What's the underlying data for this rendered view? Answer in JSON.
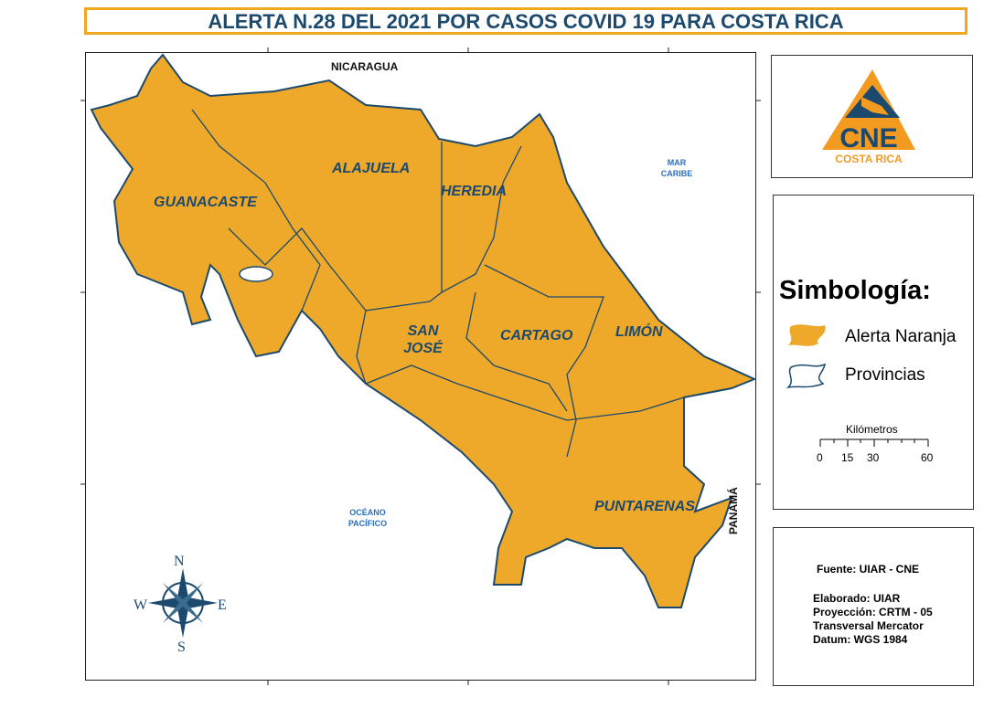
{
  "title": "ALERTA N.28 DEL 2021 POR CASOS COVID 19 PARA COSTA RICA",
  "map": {
    "countries": {
      "north": "NICARAGUA",
      "south": "PANAMÁ"
    },
    "seas": {
      "caribbean": "MAR CARIBE",
      "pacific": "OCÉANO PACÍFICO"
    },
    "provinces": [
      "GUANACASTE",
      "ALAJUELA",
      "HEREDIA",
      "SAN JOSÉ",
      "CARTAGO",
      "LIMÓN",
      "PUNTARENAS"
    ],
    "compass": {
      "n": "N",
      "s": "S",
      "e": "E",
      "w": "W"
    },
    "colors": {
      "alert_fill": "#eea92a",
      "border": "#1c4a6e"
    }
  },
  "logo": {
    "text": "CNE",
    "subtitle": "COSTA RICA"
  },
  "legend": {
    "title": "Simbología:",
    "items": [
      {
        "label": "Alerta Naranja",
        "icon": "orange-fill-swatch"
      },
      {
        "label": "Provincias",
        "icon": "province-outline-swatch"
      }
    ],
    "scale": {
      "unit": "Kilómetros",
      "ticks": [
        "0",
        "15",
        "30",
        "60"
      ]
    }
  },
  "info": {
    "source": "Fuente: UIAR - CNE",
    "lines": [
      "Elaborado: UIAR",
      "Proyección: CRTM - 05",
      "Transversal Mercator",
      "Datum: WGS 1984"
    ]
  }
}
